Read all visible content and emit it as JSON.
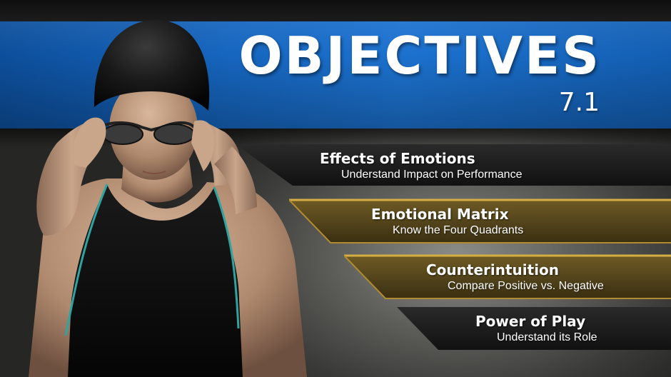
{
  "header": {
    "title": "OBJECTIVES",
    "subtitle": "7.1"
  },
  "objectives": [
    {
      "title": "Effects of Emotions",
      "description": "Understand Impact on Performance",
      "style": "dark"
    },
    {
      "title": "Emotional Matrix",
      "description": "Know the Four Quadrants",
      "style": "gold"
    },
    {
      "title": "Counterintuition",
      "description": "Compare Positive vs. Negative",
      "style": "gold"
    },
    {
      "title": "Power of Play",
      "description": "Understand its Role",
      "style": "dark"
    }
  ],
  "colors": {
    "blue_band": "#1666c0",
    "dark_band": "#1c1c1c",
    "gold_band": "#5a4a1e",
    "gold_edge": "#c9a23a",
    "text": "#ffffff"
  }
}
